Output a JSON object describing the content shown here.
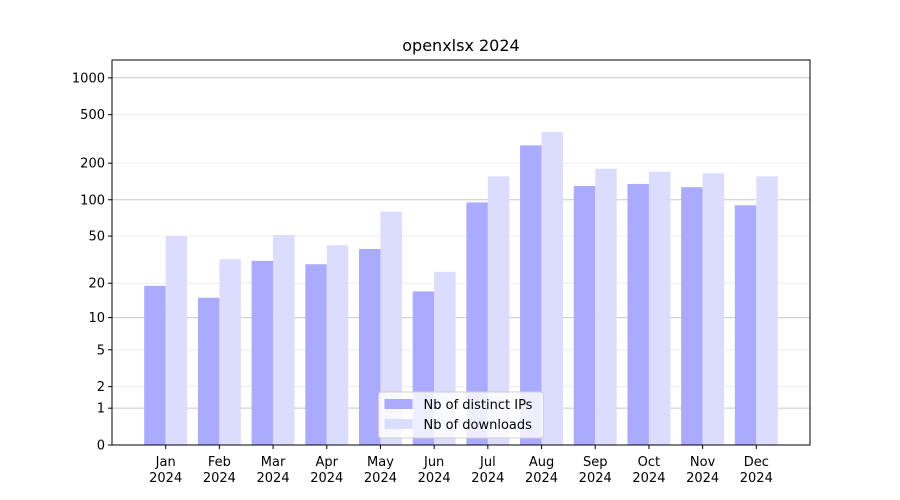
{
  "chart_data": {
    "type": "bar",
    "title": "openxlsx 2024",
    "categories": [
      "Jan\n2024",
      "Feb\n2024",
      "Mar\n2024",
      "Apr\n2024",
      "May\n2024",
      "Jun\n2024",
      "Jul\n2024",
      "Aug\n2024",
      "Sep\n2024",
      "Oct\n2024",
      "Nov\n2024",
      "Dec\n2024"
    ],
    "series": [
      {
        "name": "Nb of distinct IPs",
        "color": "#aaaaff",
        "values": [
          19,
          15,
          31,
          29,
          39,
          17,
          95,
          280,
          130,
          135,
          127,
          90
        ]
      },
      {
        "name": "Nb of downloads",
        "color": "#dcdcff",
        "values": [
          50,
          32,
          51,
          42,
          80,
          25,
          156,
          360,
          180,
          170,
          165,
          156
        ]
      }
    ],
    "yscale": "log1p",
    "ylim": [
      0,
      1400
    ],
    "yticks": [
      0,
      1,
      2,
      5,
      10,
      20,
      50,
      100,
      200,
      500,
      1000
    ],
    "grid": true,
    "legend": "lower center"
  }
}
